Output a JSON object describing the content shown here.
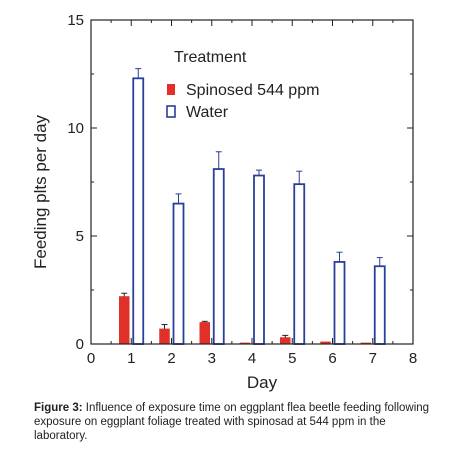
{
  "chart_data": {
    "type": "bar",
    "xlabel": "Day",
    "ylabel": "Feeding plts per day",
    "xlim": [
      0,
      8
    ],
    "ylim": [
      0,
      15
    ],
    "x_ticks": [
      0,
      1,
      2,
      3,
      4,
      5,
      6,
      7,
      8
    ],
    "y_ticks": [
      0,
      5,
      10,
      15
    ],
    "grid": false,
    "legend_title": "Treatment",
    "legend_position": "top-right",
    "x": [
      1,
      2,
      3,
      4,
      5,
      6,
      7
    ],
    "series": [
      {
        "name": "Spinosed 544 ppm",
        "style": "filled",
        "color": "#e03028",
        "values": [
          2.2,
          0.7,
          1.0,
          0.05,
          0.3,
          0.1,
          0.05
        ],
        "errors": [
          0.15,
          0.2,
          0.05,
          0.0,
          0.1,
          0.0,
          0.0
        ]
      },
      {
        "name": "Water",
        "style": "open",
        "color": "#2a3f9a",
        "values": [
          12.3,
          6.5,
          8.1,
          7.8,
          7.4,
          3.8,
          3.6
        ],
        "errors": [
          0.45,
          0.45,
          0.8,
          0.25,
          0.6,
          0.45,
          0.4
        ]
      }
    ]
  },
  "caption": {
    "label": "Figure 3:",
    "text": " Influence of exposure time on eggplant flea beetle feeding following exposure on eggplant foliage treated with spinosad at 544 ppm in the laboratory."
  }
}
